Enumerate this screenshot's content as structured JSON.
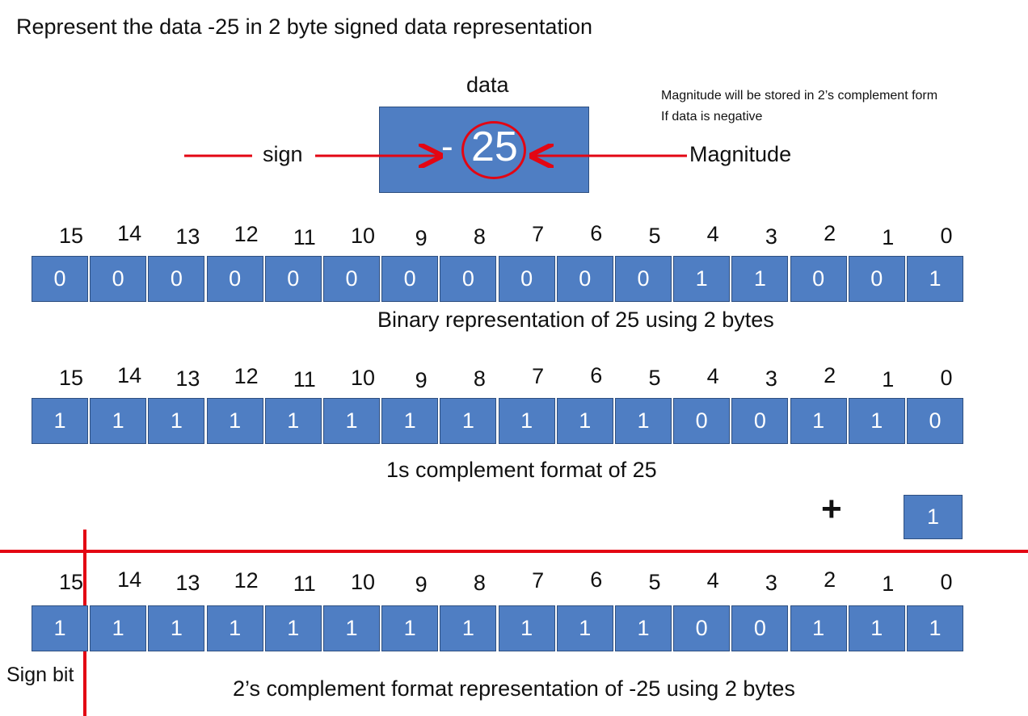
{
  "title": "Represent the data -25 in 2 byte  signed data representation",
  "data_label": "data",
  "data_minus": "-",
  "data_magnitude": "25",
  "sign_label": "sign",
  "magnitude_label": "Magnitude",
  "note": [
    "Magnitude will be stored in 2’s complement form",
    "If data is negative"
  ],
  "bit_indices": [
    "15",
    "14",
    "13",
    "12",
    "11",
    "10",
    "9",
    "8",
    "7",
    "6",
    "5",
    "4",
    "3",
    "2",
    "1",
    "0"
  ],
  "rows": [
    {
      "bits": [
        "0",
        "0",
        "0",
        "0",
        "0",
        "0",
        "0",
        "0",
        "0",
        "0",
        "0",
        "1",
        "1",
        "0",
        "0",
        "1"
      ],
      "caption": "Binary representation of 25 using 2 bytes"
    },
    {
      "bits": [
        "1",
        "1",
        "1",
        "1",
        "1",
        "1",
        "1",
        "1",
        "1",
        "1",
        "1",
        "0",
        "0",
        "1",
        "1",
        "0"
      ],
      "caption": "1s complement format of 25"
    },
    {
      "bits": [
        "1",
        "1",
        "1",
        "1",
        "1",
        "1",
        "1",
        "1",
        "1",
        "1",
        "1",
        "0",
        "0",
        "1",
        "1",
        "1"
      ],
      "caption": "2’s complement format representation of -25 using 2 bytes"
    }
  ],
  "plus_sign": "+",
  "plus_one": "1",
  "sign_bit_label": "Sign bit",
  "colors": {
    "box": "#4f7ec3",
    "box_border": "#2e4f80",
    "accent_red": "#e30613"
  }
}
